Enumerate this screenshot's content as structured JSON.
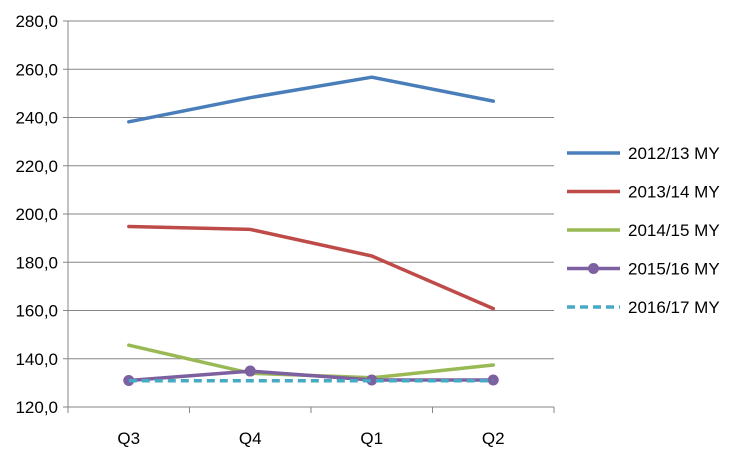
{
  "chart_data": {
    "type": "line",
    "title": "",
    "xlabel": "",
    "ylabel": "",
    "categories": [
      "Q3",
      "Q4",
      "Q1",
      "Q2"
    ],
    "ylim": [
      120,
      280
    ],
    "yticks": [
      120,
      140,
      160,
      180,
      200,
      220,
      240,
      260,
      280
    ],
    "ytick_labels": [
      "120,0",
      "140,0",
      "160,0",
      "180,0",
      "200,0",
      "220,0",
      "240,0",
      "260,0",
      "280,0"
    ],
    "grid": "horizontal",
    "legend_position": "right",
    "series": [
      {
        "name": "2012/13 MY",
        "values": [
          238.2,
          248.2,
          256.7,
          246.8
        ],
        "color": "#4a7ebb",
        "style": "solid",
        "marker": "none"
      },
      {
        "name": "2013/14 MY",
        "values": [
          194.8,
          193.6,
          182.6,
          160.8
        ],
        "color": "#be4b48",
        "style": "solid",
        "marker": "none"
      },
      {
        "name": "2014/15 MY",
        "values": [
          145.6,
          134.0,
          132.1,
          137.4
        ],
        "color": "#98b954",
        "style": "solid",
        "marker": "none"
      },
      {
        "name": "2015/16 MY",
        "values": [
          131.0,
          134.9,
          131.2,
          131.2
        ],
        "color": "#7d60a0",
        "style": "solid",
        "marker": "circle"
      },
      {
        "name": "2016/17 MY",
        "values": [
          130.9,
          130.9,
          130.9,
          130.9
        ],
        "color": "#46aac5",
        "style": "dashed",
        "marker": "none"
      }
    ]
  }
}
